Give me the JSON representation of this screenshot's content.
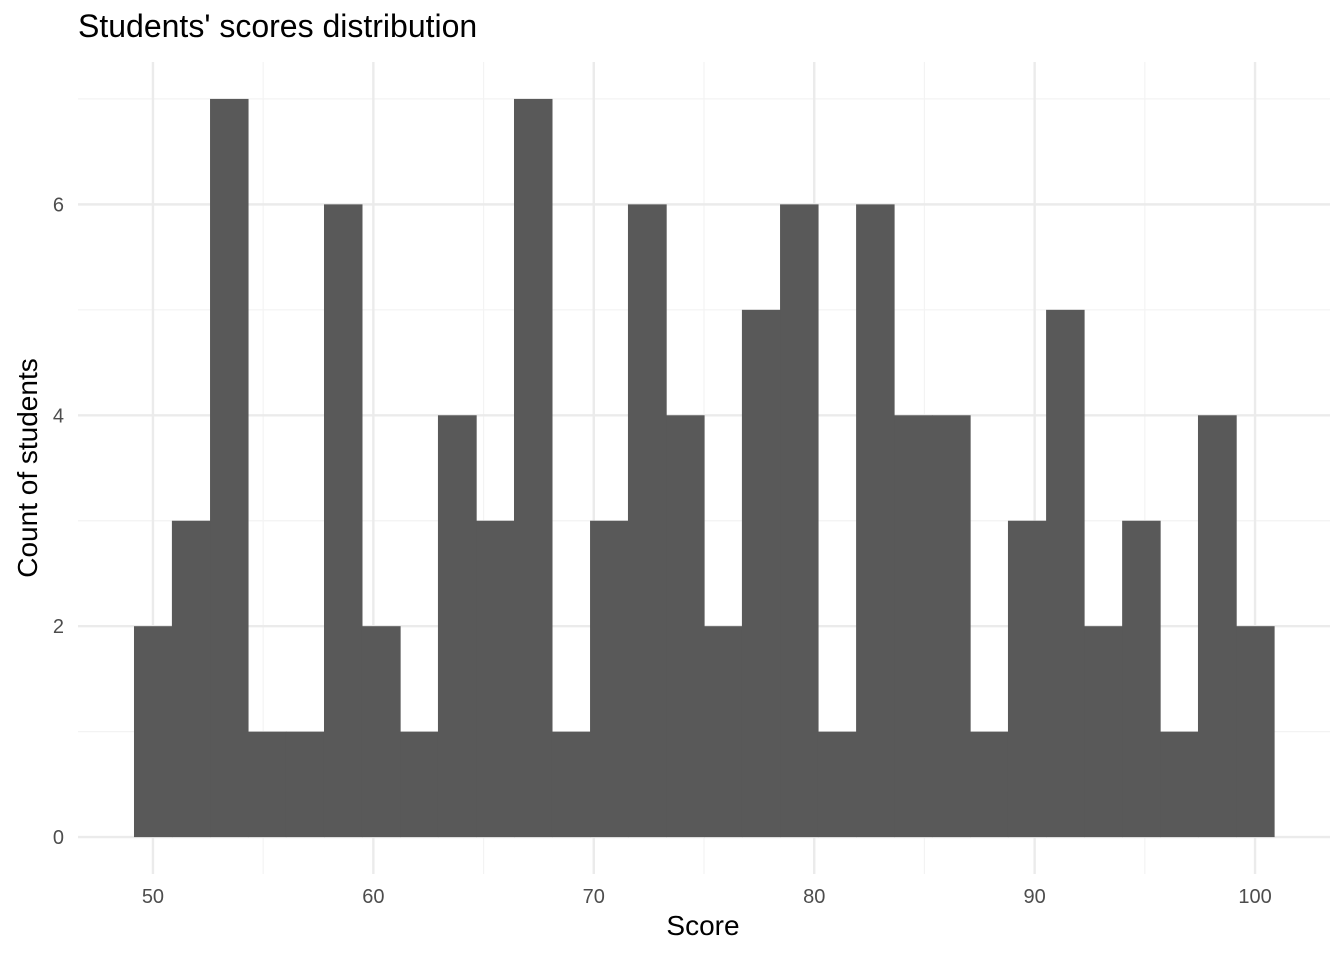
{
  "chart_data": {
    "type": "bar",
    "title": "Students' scores distribution",
    "xlabel": "Score",
    "ylabel": "Count of students",
    "xlim": [
      46.6,
      103.4
    ],
    "ylim": [
      -0.35,
      7.35
    ],
    "x_ticks": [
      50,
      60,
      70,
      80,
      90,
      100
    ],
    "y_ticks": [
      0,
      2,
      4,
      6
    ],
    "bin_width": 1.724,
    "bins": [
      {
        "x0": 49.14,
        "x1": 50.86,
        "count": 2
      },
      {
        "x0": 50.86,
        "x1": 52.59,
        "count": 3
      },
      {
        "x0": 52.59,
        "x1": 54.31,
        "count": 7
      },
      {
        "x0": 54.31,
        "x1": 56.03,
        "count": 1
      },
      {
        "x0": 56.03,
        "x1": 57.76,
        "count": 1
      },
      {
        "x0": 57.76,
        "x1": 59.48,
        "count": 6
      },
      {
        "x0": 59.48,
        "x1": 61.21,
        "count": 2
      },
      {
        "x0": 61.21,
        "x1": 62.93,
        "count": 1
      },
      {
        "x0": 62.93,
        "x1": 64.66,
        "count": 4
      },
      {
        "x0": 64.66,
        "x1": 66.38,
        "count": 3
      },
      {
        "x0": 66.38,
        "x1": 68.1,
        "count": 7
      },
      {
        "x0": 68.1,
        "x1": 69.83,
        "count": 1
      },
      {
        "x0": 69.83,
        "x1": 71.55,
        "count": 3
      },
      {
        "x0": 71.55,
        "x1": 73.28,
        "count": 6
      },
      {
        "x0": 73.28,
        "x1": 75.0,
        "count": 4
      },
      {
        "x0": 75.0,
        "x1": 76.72,
        "count": 2
      },
      {
        "x0": 76.72,
        "x1": 78.45,
        "count": 5
      },
      {
        "x0": 78.45,
        "x1": 80.17,
        "count": 6
      },
      {
        "x0": 80.17,
        "x1": 81.9,
        "count": 1
      },
      {
        "x0": 81.9,
        "x1": 83.62,
        "count": 6
      },
      {
        "x0": 83.62,
        "x1": 85.34,
        "count": 4
      },
      {
        "x0": 85.34,
        "x1": 87.07,
        "count": 4
      },
      {
        "x0": 87.07,
        "x1": 88.79,
        "count": 1
      },
      {
        "x0": 88.79,
        "x1": 90.52,
        "count": 3
      },
      {
        "x0": 90.52,
        "x1": 92.24,
        "count": 5
      },
      {
        "x0": 92.24,
        "x1": 93.97,
        "count": 2
      },
      {
        "x0": 93.97,
        "x1": 95.69,
        "count": 3
      },
      {
        "x0": 95.69,
        "x1": 97.41,
        "count": 1
      },
      {
        "x0": 97.41,
        "x1": 99.14,
        "count": 4
      },
      {
        "x0": 99.14,
        "x1": 100.86,
        "count": 2
      }
    ],
    "grid": true,
    "colors": {
      "bar": "#595959",
      "grid_major": "#ebebeb",
      "grid_minor": "#f3f3f3",
      "tick_text": "#4d4d4d"
    }
  }
}
